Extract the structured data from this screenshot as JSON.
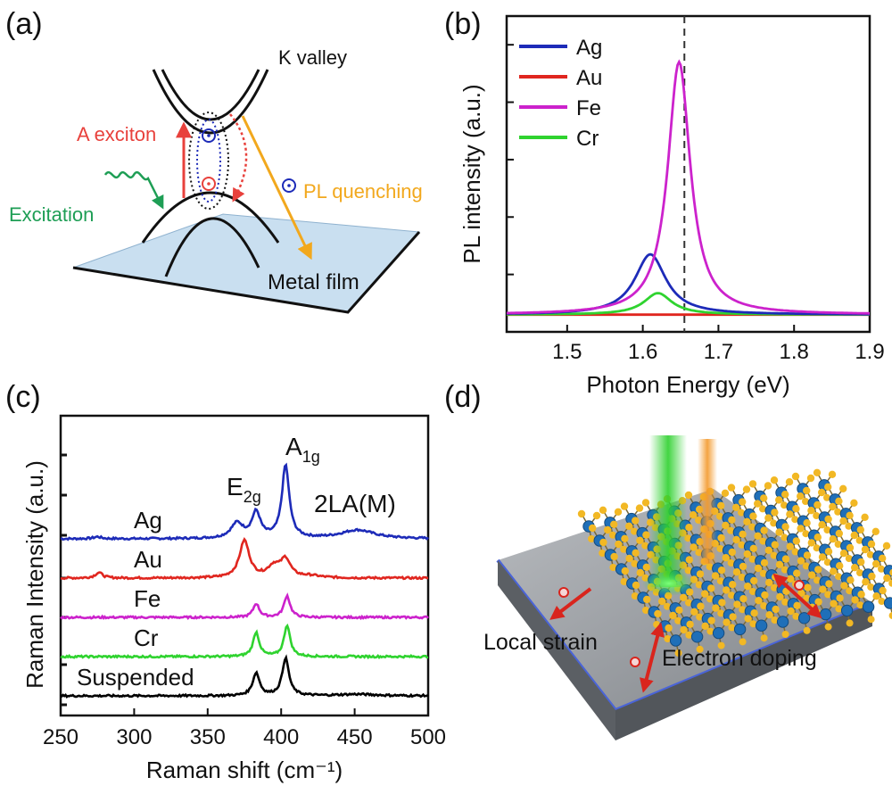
{
  "panels": {
    "a": {
      "label": "(a)",
      "texts": {
        "k_valley": "K valley",
        "a_exciton": "A exciton",
        "excitation": "Excitation",
        "pl_quenching": "PL quenching",
        "metal_film": "Metal film"
      },
      "colors": {
        "a_exciton": "#e8413c",
        "excitation": "#1e9e55",
        "pl_quenching": "#f2a81d",
        "film": "#c9dff0"
      }
    },
    "b": {
      "label": "(b)",
      "dashed_line_x": 1.655
    },
    "c": {
      "label": "(c)",
      "peak_labels": {
        "e2g_main": "E",
        "e2g_sub": "2g",
        "a1g_main": "A",
        "a1g_sub": "1g",
        "two_la": "2LA(M)"
      }
    },
    "d": {
      "label": "(d)",
      "texts": {
        "local_strain": "Local strain",
        "electron_doping": "Electron doping"
      },
      "colors": {
        "green_beam": "#2ed12e",
        "orange_beam": "#f39a2c",
        "arrow": "#d9251d",
        "substrate": "#8e9297",
        "substrate_edge": "#4a64d8",
        "atom_blue": "#1f6fb8",
        "atom_yellow": "#f2b824"
      }
    }
  },
  "chart_data": [
    {
      "id": "b",
      "type": "line",
      "xlabel": "Photon Energy (eV)",
      "ylabel": "PL intensity (a.u.)",
      "xlim": [
        1.42,
        1.9
      ],
      "ylim": [
        0,
        1.1
      ],
      "xticks": [
        "1.5",
        "1.6",
        "1.7",
        "1.8",
        "1.9"
      ],
      "legend_position": "top-left",
      "series": [
        {
          "name": "Ag",
          "color": "#1d2bb8",
          "peak": 1.61,
          "height": 0.21,
          "width": 0.05
        },
        {
          "name": "Au",
          "color": "#e0261f",
          "peak": 1.65,
          "height": 0.0,
          "width": 0.05
        },
        {
          "name": "Fe",
          "color": "#cc22cc",
          "peak": 1.648,
          "height": 0.88,
          "width": 0.036
        },
        {
          "name": "Cr",
          "color": "#2fd32f",
          "peak": 1.62,
          "height": 0.075,
          "width": 0.045
        }
      ],
      "baseline": 0.06
    },
    {
      "id": "c",
      "type": "line",
      "xlabel": "Raman shift (cm⁻¹)",
      "ylabel": "Raman Intensity (a.u.)",
      "xlim": [
        250,
        500
      ],
      "xticks": [
        "250",
        "300",
        "350",
        "400",
        "450",
        "500"
      ],
      "series": [
        {
          "name": "Ag",
          "color": "#1d2bb8",
          "offset": 4.0,
          "peaks": [
            [
              370,
              0.38,
              5
            ],
            [
              383,
              0.65,
              3.5
            ],
            [
              403,
              1.85,
              3
            ],
            [
              452,
              0.22,
              14
            ],
            [
              275,
              0.05,
              3
            ]
          ]
        },
        {
          "name": "Au",
          "color": "#e0261f",
          "offset": 3.0,
          "peaks": [
            [
              276,
              0.14,
              3
            ],
            [
              375,
              0.95,
              4
            ],
            [
              395,
              0.28,
              5
            ],
            [
              403,
              0.45,
              4
            ],
            [
              420,
              0.05,
              8
            ]
          ]
        },
        {
          "name": "Fe",
          "color": "#cc22cc",
          "offset": 2.0,
          "peaks": [
            [
              383,
              0.35,
              2.5
            ],
            [
              404,
              0.55,
              2.5
            ]
          ]
        },
        {
          "name": "Cr",
          "color": "#2fd32f",
          "offset": 1.0,
          "peaks": [
            [
              383,
              0.62,
              2.5
            ],
            [
              404,
              0.8,
              2.5
            ]
          ]
        },
        {
          "name": "Suspended",
          "color": "#000000",
          "offset": 0.0,
          "peaks": [
            [
              383,
              0.58,
              2.8
            ],
            [
              403,
              0.95,
              2.8
            ],
            [
              452,
              0.04,
              15
            ]
          ]
        }
      ]
    }
  ]
}
